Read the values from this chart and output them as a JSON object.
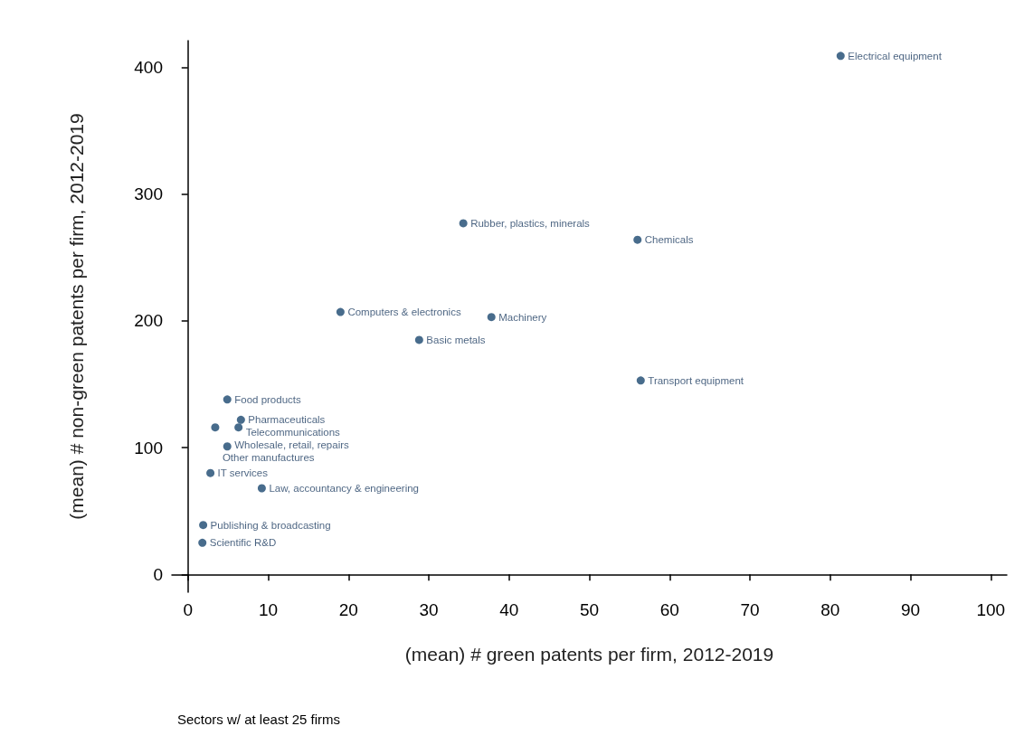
{
  "chart_data": {
    "type": "scatter",
    "xlabel": "(mean) # green patents per firm, 2012-2019",
    "ylabel": "(mean) # non-green patents per firm, 2012-2019",
    "x": [
      81.3,
      34.3,
      56.0,
      19.0,
      37.8,
      28.8,
      56.4,
      4.9,
      6.6,
      6.3,
      3.4,
      4.9,
      2.8,
      9.2,
      1.9,
      1.8
    ],
    "series": [
      {
        "color": "#1a476f",
        "values": [
          409,
          277,
          264,
          207,
          203,
          185,
          153,
          138,
          122,
          116,
          116,
          101,
          80,
          68,
          39,
          25
        ]
      }
    ],
    "annotations": [
      {
        "text": "Electrical equipment",
        "x": 81.3,
        "y": 409
      },
      {
        "text": "Rubber, plastics, minerals",
        "x": 34.3,
        "y": 277
      },
      {
        "text": "Chemicals",
        "x": 56.0,
        "y": 264
      },
      {
        "text": "Computers & electronics",
        "x": 19.0,
        "y": 207
      },
      {
        "text": "Machinery",
        "x": 37.8,
        "y": 203
      },
      {
        "text": "Basic metals",
        "x": 28.8,
        "y": 185
      },
      {
        "text": "Transport equipment",
        "x": 56.4,
        "y": 153
      },
      {
        "text": "Food products",
        "x": 4.9,
        "y": 138
      },
      {
        "text": "Pharmaceuticals",
        "x": 6.6,
        "y": 122
      },
      {
        "text": "Telecommunications",
        "x": 6.3,
        "y": 116
      },
      {
        "text": "Other manufactures",
        "x": 3.4,
        "y": 116
      },
      {
        "text": "Wholesale, retail, repairs",
        "x": 4.9,
        "y": 101
      },
      {
        "text": "IT services",
        "x": 2.8,
        "y": 80
      },
      {
        "text": "Law, accountancy & engineering",
        "x": 9.2,
        "y": 68
      },
      {
        "text": "Publishing & broadcasting",
        "x": 1.9,
        "y": 39
      },
      {
        "text": "Scientific R&D",
        "x": 1.8,
        "y": 25
      },
      "Sectors w/ at least 25 firms"
    ],
    "xlim": [
      -2,
      102
    ],
    "xticks": [
      0,
      10,
      20,
      30,
      40,
      50,
      60,
      70,
      80,
      90,
      100
    ],
    "ylim": [
      -14,
      421
    ],
    "yticks": [
      0,
      100,
      200,
      300,
      400
    ],
    "grid": false,
    "marker": "circle"
  }
}
